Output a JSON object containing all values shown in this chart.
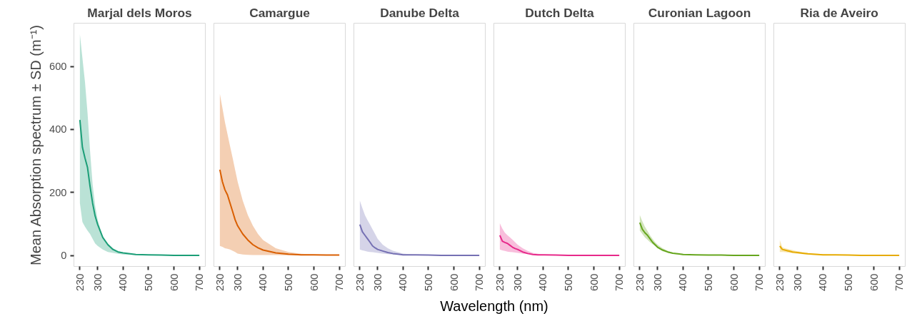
{
  "chart_data": [
    {
      "type": "line",
      "title": "Marjal dels Moros",
      "ylabel": "Mean Absorption spectrum ± SD (m⁻¹)",
      "annotations": [
        "Wavelength (nm)"
      ],
      "x": [
        230,
        240,
        250,
        260,
        270,
        280,
        290,
        300,
        320,
        340,
        360,
        380,
        400,
        450,
        500,
        550,
        600,
        650,
        700
      ],
      "xlim": [
        206.5,
        723.5
      ],
      "xticks": [
        230,
        300,
        400,
        500,
        600,
        700
      ],
      "ylim": [
        -35,
        737
      ],
      "yticks": [
        0,
        200,
        400,
        600
      ],
      "grid": false,
      "marker": "none",
      "line_style": "solid",
      "series": [
        {
          "color": "#1b9e77",
          "values": [
            430,
            343,
            309,
            279,
            219,
            166,
            125,
            98,
            57,
            34,
            19,
            11,
            8,
            3,
            2,
            1,
            0,
            0,
            0
          ],
          "lower": [
            166,
            106,
            91,
            79,
            68,
            53,
            38,
            30,
            19,
            11,
            8,
            5,
            3,
            1,
            0,
            0,
            0,
            0,
            0
          ],
          "upper": [
            702,
            626,
            551,
            453,
            332,
            226,
            158,
            113,
            60,
            38,
            23,
            14,
            9,
            3,
            2,
            1,
            0,
            0,
            0
          ]
        }
      ]
    },
    {
      "type": "line",
      "title": "Camargue",
      "x": [
        230,
        240,
        250,
        260,
        270,
        280,
        290,
        300,
        320,
        340,
        360,
        380,
        400,
        450,
        500,
        550,
        600,
        650,
        700
      ],
      "xlim": [
        206.5,
        723.5
      ],
      "xticks": [
        230,
        300,
        400,
        500,
        600,
        700
      ],
      "ylim": [
        -35,
        737
      ],
      "yticks": [
        0,
        200,
        400,
        600
      ],
      "tick_labels": "x",
      "grid": false,
      "marker": "none",
      "line_style": "solid",
      "series": [
        {
          "color": "#d95f02",
          "values": [
            272,
            234,
            208,
            192,
            166,
            140,
            113,
            94,
            68,
            49,
            34,
            24,
            17,
            8,
            4,
            2,
            2,
            1,
            1
          ],
          "lower": [
            30,
            27,
            23,
            21,
            19,
            15,
            11,
            6,
            3,
            2,
            1,
            1,
            1,
            1,
            0,
            0,
            0,
            0,
            0
          ],
          "upper": [
            513,
            468,
            423,
            385,
            347,
            310,
            272,
            234,
            174,
            128,
            94,
            68,
            49,
            23,
            11,
            5,
            3,
            2,
            1
          ]
        }
      ]
    },
    {
      "type": "line",
      "title": "Danube Delta",
      "x": [
        230,
        240,
        250,
        260,
        270,
        280,
        290,
        300,
        320,
        340,
        360,
        380,
        400,
        450,
        500,
        550,
        600,
        650,
        700
      ],
      "xlim": [
        206.5,
        723.5
      ],
      "xticks": [
        230,
        300,
        400,
        500,
        600,
        700
      ],
      "ylim": [
        -35,
        737
      ],
      "yticks": [
        0,
        200,
        400,
        600
      ],
      "tick_labels": "x",
      "grid": false,
      "marker": "none",
      "line_style": "solid",
      "series": [
        {
          "color": "#7570b3",
          "values": [
            98,
            75,
            64,
            53,
            42,
            30,
            24,
            19,
            14,
            9,
            6,
            4,
            2,
            2,
            1,
            0,
            0,
            0,
            0
          ],
          "lower": [
            19,
            16,
            14,
            12,
            11,
            10,
            9,
            8,
            6,
            4,
            3,
            2,
            2,
            1,
            0,
            0,
            0,
            0,
            0
          ],
          "upper": [
            174,
            150,
            128,
            112,
            98,
            83,
            68,
            53,
            34,
            23,
            15,
            10,
            6,
            2,
            1,
            1,
            0,
            0,
            0
          ]
        }
      ]
    },
    {
      "type": "line",
      "title": "Dutch Delta",
      "x": [
        230,
        240,
        250,
        260,
        270,
        280,
        290,
        300,
        320,
        340,
        360,
        380,
        400,
        450,
        500,
        550,
        600,
        650,
        700
      ],
      "xlim": [
        206.5,
        723.5
      ],
      "xticks": [
        230,
        300,
        400,
        500,
        600,
        700
      ],
      "ylim": [
        -35,
        737
      ],
      "yticks": [
        0,
        200,
        400,
        600
      ],
      "tick_labels": "x",
      "grid": false,
      "marker": "none",
      "line_style": "solid",
      "series": [
        {
          "color": "#e7298a",
          "values": [
            64,
            45,
            41,
            38,
            32,
            26,
            22,
            19,
            11,
            6,
            3,
            2,
            2,
            1,
            0,
            0,
            0,
            0,
            0
          ],
          "lower": [
            19,
            16,
            14,
            12,
            11,
            10,
            9,
            8,
            6,
            4,
            3,
            2,
            2,
            1,
            0,
            0,
            0,
            0,
            0
          ],
          "upper": [
            102,
            85,
            72,
            64,
            57,
            50,
            42,
            34,
            23,
            14,
            8,
            5,
            3,
            1,
            1,
            0,
            0,
            0,
            0
          ]
        }
      ]
    },
    {
      "type": "line",
      "title": "Curonian Lagoon",
      "x": [
        230,
        240,
        250,
        260,
        270,
        280,
        290,
        300,
        320,
        340,
        360,
        380,
        400,
        450,
        500,
        550,
        600,
        650,
        700
      ],
      "xlim": [
        206.5,
        723.5
      ],
      "xticks": [
        230,
        300,
        400,
        500,
        600,
        700
      ],
      "ylim": [
        -35,
        737
      ],
      "yticks": [
        0,
        200,
        400,
        600
      ],
      "tick_labels": "x",
      "grid": false,
      "marker": "none",
      "line_style": "solid",
      "series": [
        {
          "color": "#66a61e",
          "values": [
            104,
            83,
            72,
            64,
            53,
            42,
            34,
            26,
            17,
            11,
            7,
            5,
            3,
            2,
            1,
            1,
            0,
            0,
            0
          ],
          "lower": [
            79,
            68,
            57,
            50,
            42,
            36,
            30,
            23,
            13,
            8,
            5,
            3,
            2,
            1,
            1,
            0,
            0,
            0,
            0
          ],
          "upper": [
            128,
            108,
            91,
            78,
            64,
            53,
            42,
            34,
            23,
            14,
            9,
            6,
            5,
            2,
            1,
            1,
            1,
            0,
            0
          ]
        }
      ]
    },
    {
      "type": "line",
      "title": "Ria de Aveiro",
      "x": [
        230,
        240,
        250,
        260,
        270,
        280,
        290,
        300,
        320,
        340,
        360,
        380,
        400,
        450,
        500,
        550,
        600,
        650,
        700
      ],
      "xlim": [
        206.5,
        723.5
      ],
      "xticks": [
        230,
        300,
        400,
        500,
        600,
        700
      ],
      "ylim": [
        -35,
        737
      ],
      "yticks": [
        0,
        200,
        400,
        600
      ],
      "tick_labels": "x",
      "grid": false,
      "marker": "none",
      "line_style": "solid",
      "series": [
        {
          "color": "#e6ab02",
          "values": [
            30,
            19,
            17,
            15,
            13,
            11,
            10,
            9,
            7,
            5,
            4,
            3,
            2,
            2,
            1,
            0,
            0,
            0,
            0
          ],
          "lower": [
            11,
            11,
            10,
            9,
            8,
            7,
            6,
            5,
            4,
            3,
            2,
            2,
            2,
            1,
            0,
            0,
            0,
            0,
            0
          ],
          "upper": [
            49,
            26,
            23,
            21,
            19,
            17,
            15,
            13,
            10,
            8,
            6,
            5,
            4,
            2,
            1,
            1,
            0,
            0,
            0
          ]
        }
      ]
    }
  ]
}
